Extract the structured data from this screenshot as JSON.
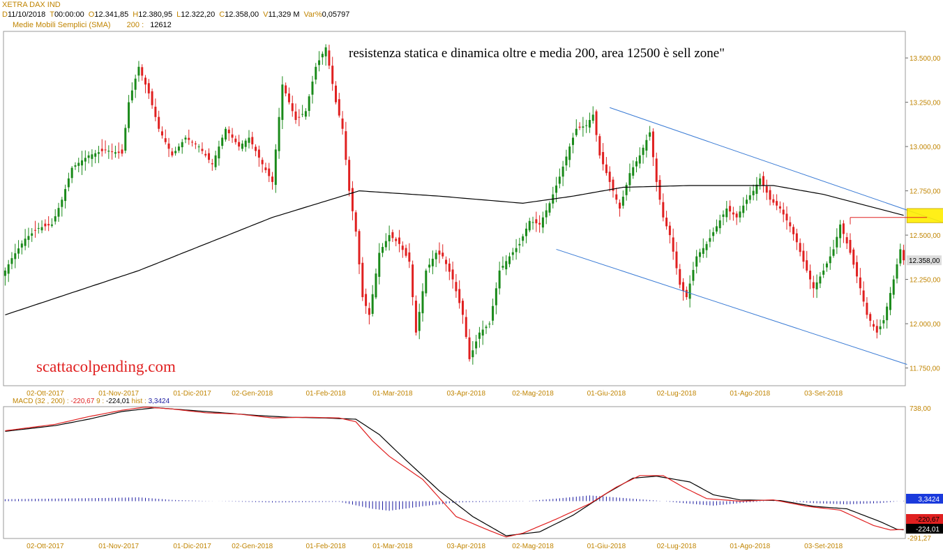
{
  "header": {
    "instrument": "XETRA DAX IND",
    "ohlc": [
      {
        "k": "D",
        "v": "11/10/2018"
      },
      {
        "k": "T",
        "v": "00:00:00"
      },
      {
        "k": "O",
        "v": "12.341,85"
      },
      {
        "k": "H",
        "v": "12.380,95"
      },
      {
        "k": "L",
        "v": "12.322,20"
      },
      {
        "k": "C",
        "v": "12.358,00"
      },
      {
        "k": "V",
        "v": "11,329 M"
      },
      {
        "k": "Var%",
        "v": "0,05797"
      }
    ],
    "sma_label": "Medie Mobili Semplici (SMA)",
    "sma_period": "200 :",
    "sma_value": "12612"
  },
  "colors": {
    "up_candle": "#1a8a1a",
    "down_candle": "#e02020",
    "sma_line": "#000000",
    "trend_lines": "#3a7bd5",
    "zone_fill": "#ffee00",
    "resistance_line": "#e02020",
    "macd_line": "#e02020",
    "signal_line": "#000000",
    "histogram": "#1a1aa0",
    "axis_label": "#c08400"
  },
  "chart_data": [
    {
      "type": "candlestick",
      "title": "XETRA DAX IND",
      "annotation_main": "resistenza statica e dinamica oltre e media 200, area 12500 è sell zone\"",
      "watermark": "scattacolpending.com",
      "ylim": [
        11650,
        13650
      ],
      "y_ticks": [
        "13.500,00",
        "13.250,00",
        "13.000,00",
        "12.750,00",
        "12.500,00",
        "12.250,00",
        "12.000,00",
        "11.750,00"
      ],
      "y_tick_values": [
        13500,
        13250,
        13000,
        12750,
        12500,
        12250,
        12000,
        11750
      ],
      "last_price_label": "12.358,00",
      "last_price": 12358,
      "x_labels": [
        "02-Ott-2017",
        "01-Nov-2017",
        "01-Dic-2017",
        "02-Gen-2018",
        "01-Feb-2018",
        "01-Mar-2018",
        "03-Apr-2018",
        "02-Mag-2018",
        "01-Giu-2018",
        "02-Lug-2018",
        "01-Ago-2018",
        "03-Set-2018"
      ],
      "x_label_index": [
        12,
        34,
        56,
        74,
        96,
        116,
        138,
        158,
        180,
        201,
        223,
        245
      ],
      "bar_count": 270,
      "close_anchors": [
        [
          0,
          12300
        ],
        [
          2,
          12370
        ],
        [
          6,
          12480
        ],
        [
          10,
          12540
        ],
        [
          14,
          12560
        ],
        [
          17,
          12700
        ],
        [
          20,
          12880
        ],
        [
          25,
          12950
        ],
        [
          30,
          12980
        ],
        [
          35,
          12960
        ],
        [
          37,
          13250
        ],
        [
          40,
          13450
        ],
        [
          43,
          13300
        ],
        [
          46,
          13100
        ],
        [
          50,
          12950
        ],
        [
          54,
          13050
        ],
        [
          58,
          13000
        ],
        [
          62,
          12900
        ],
        [
          66,
          13100
        ],
        [
          70,
          13000
        ],
        [
          73,
          13050
        ],
        [
          77,
          12900
        ],
        [
          80,
          12800
        ],
        [
          83,
          13350
        ],
        [
          87,
          13150
        ],
        [
          90,
          13200
        ],
        [
          93,
          13450
        ],
        [
          96,
          13560
        ],
        [
          99,
          13250
        ],
        [
          101,
          13100
        ],
        [
          103,
          12750
        ],
        [
          105,
          12520
        ],
        [
          107,
          12150
        ],
        [
          109,
          12050
        ],
        [
          112,
          12400
        ],
        [
          115,
          12500
        ],
        [
          118,
          12450
        ],
        [
          121,
          12350
        ],
        [
          123,
          11950
        ],
        [
          126,
          12300
        ],
        [
          129,
          12400
        ],
        [
          131,
          12380
        ],
        [
          134,
          12250
        ],
        [
          137,
          12050
        ],
        [
          139,
          11800
        ],
        [
          142,
          11950
        ],
        [
          145,
          12000
        ],
        [
          148,
          12300
        ],
        [
          151,
          12380
        ],
        [
          154,
          12450
        ],
        [
          157,
          12580
        ],
        [
          160,
          12560
        ],
        [
          163,
          12680
        ],
        [
          166,
          12830
        ],
        [
          169,
          13000
        ],
        [
          171,
          13100
        ],
        [
          174,
          13120
        ],
        [
          176,
          13180
        ],
        [
          178,
          12950
        ],
        [
          181,
          12800
        ],
        [
          184,
          12650
        ],
        [
          187,
          12850
        ],
        [
          190,
          12950
        ],
        [
          193,
          13080
        ],
        [
          195,
          12800
        ],
        [
          197,
          12600
        ],
        [
          199,
          12500
        ],
        [
          202,
          12220
        ],
        [
          204,
          12150
        ],
        [
          207,
          12380
        ],
        [
          210,
          12450
        ],
        [
          213,
          12550
        ],
        [
          216,
          12650
        ],
        [
          219,
          12600
        ],
        [
          222,
          12700
        ],
        [
          224,
          12750
        ],
        [
          226,
          12820
        ],
        [
          229,
          12700
        ],
        [
          232,
          12650
        ],
        [
          235,
          12550
        ],
        [
          237,
          12460
        ],
        [
          239,
          12350
        ],
        [
          242,
          12200
        ],
        [
          245,
          12300
        ],
        [
          248,
          12420
        ],
        [
          250,
          12560
        ],
        [
          253,
          12400
        ],
        [
          256,
          12200
        ],
        [
          258,
          12050
        ],
        [
          261,
          11950
        ],
        [
          263,
          12020
        ],
        [
          266,
          12250
        ],
        [
          268,
          12420
        ],
        [
          269,
          12358
        ]
      ],
      "sma200_anchors": [
        [
          0,
          12050
        ],
        [
          40,
          12300
        ],
        [
          80,
          12600
        ],
        [
          106,
          12750
        ],
        [
          130,
          12720
        ],
        [
          155,
          12680
        ],
        [
          170,
          12720
        ],
        [
          185,
          12770
        ],
        [
          205,
          12780
        ],
        [
          230,
          12780
        ],
        [
          245,
          12730
        ],
        [
          269,
          12612
        ]
      ],
      "trend_upper": {
        "from": [
          181,
          13220
        ],
        "to": [
          281,
          12570
        ]
      },
      "trend_lower": {
        "from": [
          165,
          12420
        ],
        "to": [
          270,
          11770
        ]
      },
      "resistance_line": {
        "from": [
          253,
          12600
        ],
        "to": [
          276,
          12600
        ]
      },
      "sell_zone": {
        "x": [
          270,
          286
        ],
        "y": [
          12570,
          12650
        ]
      }
    },
    {
      "type": "line",
      "title": "MACD",
      "params": "(32 , 200) :",
      "macd_value": "-220,67",
      "signal_period": "9 :",
      "signal_value": "-224,01",
      "hist_label": "hist :",
      "hist_value": "3,3424",
      "y_max_label": "738,00",
      "y_min_label": "-291,27",
      "ylim": [
        -291.27,
        738
      ],
      "macd_anchors": [
        [
          0,
          550
        ],
        [
          15,
          600
        ],
        [
          25,
          660
        ],
        [
          35,
          710
        ],
        [
          42,
          735
        ],
        [
          50,
          720
        ],
        [
          60,
          690
        ],
        [
          70,
          680
        ],
        [
          80,
          650
        ],
        [
          90,
          655
        ],
        [
          100,
          650
        ],
        [
          105,
          620
        ],
        [
          110,
          470
        ],
        [
          115,
          350
        ],
        [
          125,
          170
        ],
        [
          135,
          -120
        ],
        [
          145,
          -230
        ],
        [
          150,
          -280
        ],
        [
          155,
          -250
        ],
        [
          165,
          -140
        ],
        [
          175,
          -20
        ],
        [
          183,
          110
        ],
        [
          190,
          200
        ],
        [
          197,
          200
        ],
        [
          203,
          110
        ],
        [
          210,
          20
        ],
        [
          220,
          0
        ],
        [
          230,
          10
        ],
        [
          240,
          -40
        ],
        [
          250,
          -70
        ],
        [
          260,
          -190
        ],
        [
          265,
          -225
        ],
        [
          269,
          -220.67
        ]
      ],
      "signal_anchors": [
        [
          0,
          545
        ],
        [
          15,
          590
        ],
        [
          25,
          640
        ],
        [
          35,
          700
        ],
        [
          45,
          730
        ],
        [
          55,
          710
        ],
        [
          65,
          690
        ],
        [
          75,
          670
        ],
        [
          85,
          655
        ],
        [
          95,
          650
        ],
        [
          105,
          640
        ],
        [
          112,
          520
        ],
        [
          120,
          320
        ],
        [
          130,
          80
        ],
        [
          140,
          -120
        ],
        [
          150,
          -270
        ],
        [
          160,
          -240
        ],
        [
          170,
          -110
        ],
        [
          180,
          60
        ],
        [
          188,
          180
        ],
        [
          195,
          195
        ],
        [
          205,
          150
        ],
        [
          212,
          50
        ],
        [
          220,
          10
        ],
        [
          232,
          5
        ],
        [
          242,
          -40
        ],
        [
          252,
          -60
        ],
        [
          262,
          -160
        ],
        [
          267,
          -220
        ],
        [
          269,
          -224.01
        ]
      ],
      "hist_anchors": [
        [
          0,
          15
        ],
        [
          30,
          25
        ],
        [
          40,
          30
        ],
        [
          50,
          10
        ],
        [
          60,
          2
        ],
        [
          80,
          -10
        ],
        [
          100,
          -5
        ],
        [
          110,
          -60
        ],
        [
          115,
          -75
        ],
        [
          125,
          -40
        ],
        [
          135,
          -10
        ],
        [
          145,
          -5
        ],
        [
          155,
          -2
        ],
        [
          165,
          20
        ],
        [
          175,
          45
        ],
        [
          185,
          25
        ],
        [
          195,
          5
        ],
        [
          205,
          -20
        ],
        [
          212,
          -35
        ],
        [
          222,
          -10
        ],
        [
          232,
          5
        ],
        [
          242,
          -15
        ],
        [
          252,
          -25
        ],
        [
          262,
          -15
        ],
        [
          269,
          3.34
        ]
      ],
      "x_labels": [
        "02-Ott-2017",
        "01-Nov-2017",
        "01-Dic-2017",
        "02-Gen-2018",
        "01-Feb-2018",
        "01-Mar-2018",
        "03-Apr-2018",
        "02-Mag-2018",
        "01-Giu-2018",
        "02-Lug-2018",
        "01-Ago-2018",
        "03-Set-2018"
      ]
    }
  ]
}
